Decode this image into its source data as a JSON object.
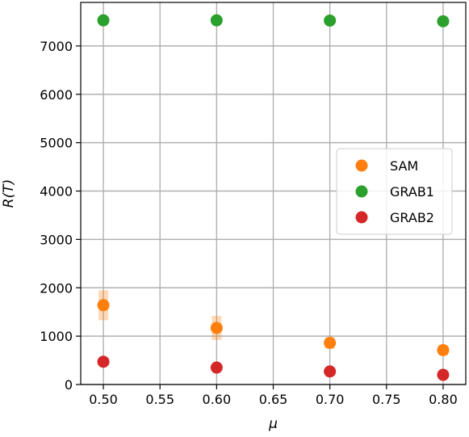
{
  "chart_data": {
    "type": "scatter",
    "xlabel": "μ",
    "ylabel": "R(T)",
    "xlim": [
      0.48,
      0.82
    ],
    "ylim": [
      0,
      7900
    ],
    "xticks": [
      0.5,
      0.55,
      0.6,
      0.65,
      0.7,
      0.75,
      0.8
    ],
    "xtick_labels": [
      "0.50",
      "0.55",
      "0.60",
      "0.65",
      "0.70",
      "0.75",
      "0.80"
    ],
    "yticks": [
      0,
      1000,
      2000,
      3000,
      4000,
      5000,
      6000,
      7000
    ],
    "ytick_labels": [
      "0",
      "1000",
      "2000",
      "3000",
      "4000",
      "5000",
      "6000",
      "7000"
    ],
    "grid": true,
    "legend_position": "right",
    "x": [
      0.5,
      0.6,
      0.7,
      0.8
    ],
    "series": [
      {
        "name": "SAM",
        "color": "#ff7f0e",
        "values": [
          1640,
          1170,
          860,
          710
        ],
        "error": [
          310,
          250,
          120,
          110
        ]
      },
      {
        "name": "GRAB1",
        "color": "#2ca02c",
        "values": [
          7530,
          7530,
          7525,
          7510
        ],
        "error": [
          0,
          0,
          0,
          0
        ]
      },
      {
        "name": "GRAB2",
        "color": "#d62728",
        "values": [
          470,
          350,
          270,
          200
        ],
        "error": [
          40,
          40,
          40,
          50
        ]
      }
    ]
  }
}
